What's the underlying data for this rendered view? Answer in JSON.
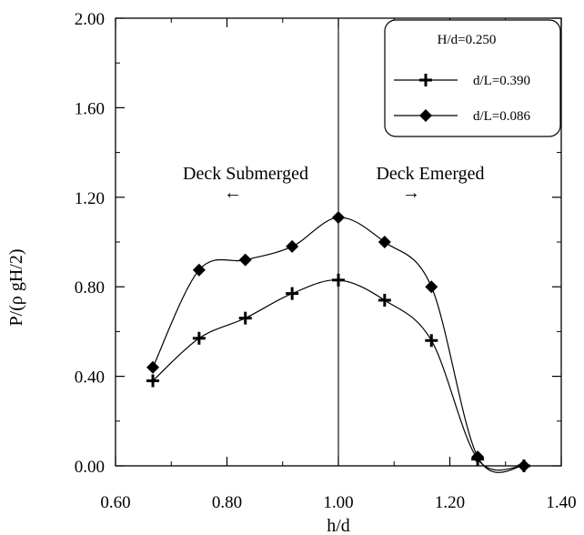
{
  "chart_data": {
    "type": "line",
    "title": "",
    "xlabel": "h/d",
    "ylabel": "P/(ρ gH/2)",
    "xlim": [
      0.6,
      1.4
    ],
    "ylim": [
      0.0,
      2.0
    ],
    "xticks": [
      "0.60",
      "0.80",
      "1.00",
      "1.20",
      "1.40"
    ],
    "yticks": [
      "0.00",
      "0.40",
      "0.80",
      "1.20",
      "1.60",
      "2.00"
    ],
    "grid": false,
    "legend": {
      "position": "top-right",
      "header": "H/d=0.250",
      "entries": [
        "d/L=0.390",
        "d/L=0.086"
      ]
    },
    "annotations": {
      "left": "Deck Submerged",
      "right": "Deck Emerged",
      "left_arrow": "←",
      "right_arrow": "→"
    },
    "reference_line_x": 1.0,
    "series": [
      {
        "name": "d/L=0.390",
        "marker": "plus",
        "x": [
          0.667,
          0.75,
          0.833,
          0.917,
          1.0,
          1.083,
          1.167,
          1.25,
          1.333
        ],
        "y": [
          0.38,
          0.57,
          0.66,
          0.77,
          0.83,
          0.74,
          0.56,
          0.03,
          0.0
        ]
      },
      {
        "name": "d/L=0.086",
        "marker": "diamond",
        "x": [
          0.667,
          0.75,
          0.833,
          0.917,
          1.0,
          1.083,
          1.167,
          1.25,
          1.333
        ],
        "y": [
          0.44,
          0.875,
          0.92,
          0.98,
          1.11,
          1.0,
          0.8,
          0.04,
          0.0
        ]
      }
    ]
  }
}
